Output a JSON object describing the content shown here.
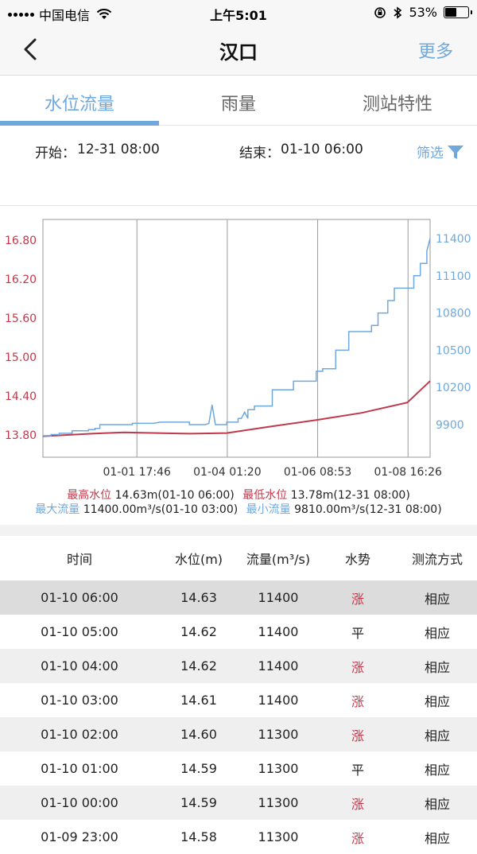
{
  "status_bar": {
    "carrier": "中国电信",
    "time": "上午5:01",
    "battery": "53%",
    "battery_level": 0.53
  },
  "nav": {
    "title": "汉口",
    "more": "更多"
  },
  "tabs": [
    {
      "label": "水位流量",
      "active": true
    },
    {
      "label": "雨量",
      "active": false
    },
    {
      "label": "测站特性",
      "active": false
    }
  ],
  "filter": {
    "start_label": "开始：",
    "start_value": "12-31 08:00",
    "end_label": "结束：",
    "end_value": "01-10 06:00",
    "filter_label": "筛选"
  },
  "colors": {
    "level": "#c0394b",
    "flow": "#6fa8dc"
  },
  "chart_data": {
    "type": "line",
    "x_ticks": [
      "01-01 17:46",
      "01-04 01:20",
      "01-06 08:53",
      "01-08 16:26"
    ],
    "x_tick_hours": [
      57.77,
      113.33,
      168.88,
      224.43
    ],
    "x_range_hours": [
      0,
      238
    ],
    "y_left_ticks": [
      "16.80",
      "16.20",
      "15.60",
      "15.00",
      "14.40",
      "13.80"
    ],
    "y_left_range": [
      13.8,
      16.8
    ],
    "y_right_ticks": [
      "11400",
      "11100",
      "10800",
      "10500",
      "10200",
      "9900"
    ],
    "y_right_range": [
      9810,
      11400
    ],
    "grid": "vertical",
    "series": [
      {
        "key": "level",
        "axis": "left",
        "x": [
          0,
          30,
          50,
          70,
          90,
          113,
          140,
          168,
          196,
          224,
          238
        ],
        "y": [
          13.78,
          13.82,
          13.84,
          13.83,
          13.82,
          13.83,
          13.93,
          14.03,
          14.14,
          14.3,
          14.63
        ]
      },
      {
        "key": "flow",
        "axis": "right",
        "x": [
          0,
          5,
          5,
          10,
          10,
          18,
          18,
          28,
          28,
          32,
          32,
          35,
          35,
          55,
          55,
          68,
          72,
          90,
          90,
          100,
          102,
          104,
          106,
          108,
          113,
          113,
          120,
          120,
          122,
          124,
          126,
          126,
          130,
          130,
          141,
          141,
          150,
          150,
          154,
          154,
          161,
          161,
          168,
          168,
          172,
          172,
          180,
          180,
          188,
          188,
          202,
          202,
          206,
          206,
          212,
          212,
          216,
          216,
          220,
          220,
          228,
          228,
          232,
          232,
          236,
          236,
          238
        ],
        "y": [
          9810,
          9810,
          9820,
          9820,
          9830,
          9830,
          9850,
          9850,
          9860,
          9860,
          9870,
          9870,
          9900,
          9900,
          9910,
          9910,
          9920,
          9920,
          9900,
          9900,
          9910,
          10060,
          9900,
          9900,
          9900,
          9920,
          9920,
          9950,
          9950,
          10000,
          9950,
          10020,
          10020,
          10050,
          10050,
          10180,
          10180,
          10180,
          10180,
          10250,
          10250,
          10250,
          10250,
          10330,
          10330,
          10350,
          10350,
          10500,
          10500,
          10650,
          10650,
          10700,
          10700,
          10800,
          10800,
          10900,
          10900,
          11000,
          11000,
          11000,
          11000,
          11100,
          11100,
          11200,
          11200,
          11300,
          11400
        ]
      }
    ]
  },
  "summary": {
    "max_level_label": "最高水位",
    "max_level_value": "14.63m(01-10 06:00)",
    "min_level_label": "最低水位",
    "min_level_value": "13.78m(12-31 08:00)",
    "max_flow_label": "最大流量",
    "max_flow_value": "11400.00m³/s(01-10 03:00)",
    "min_flow_label": "最小流量",
    "min_flow_value": "9810.00m³/s(12-31 08:00)"
  },
  "table": {
    "headers": [
      "时间",
      "水位(m)",
      "流量(m³/s)",
      "水势",
      "测流方式"
    ],
    "rows": [
      {
        "time": "01-10 06:00",
        "level": "14.63",
        "flow": "11400",
        "trend": "涨",
        "method": "相应"
      },
      {
        "time": "01-10 05:00",
        "level": "14.62",
        "flow": "11400",
        "trend": "平",
        "method": "相应"
      },
      {
        "time": "01-10 04:00",
        "level": "14.62",
        "flow": "11400",
        "trend": "涨",
        "method": "相应"
      },
      {
        "time": "01-10 03:00",
        "level": "14.61",
        "flow": "11400",
        "trend": "涨",
        "method": "相应"
      },
      {
        "time": "01-10 02:00",
        "level": "14.60",
        "flow": "11300",
        "trend": "涨",
        "method": "相应"
      },
      {
        "time": "01-10 01:00",
        "level": "14.59",
        "flow": "11300",
        "trend": "平",
        "method": "相应"
      },
      {
        "time": "01-10 00:00",
        "level": "14.59",
        "flow": "11300",
        "trend": "涨",
        "method": "相应"
      },
      {
        "time": "01-09 23:00",
        "level": "14.58",
        "flow": "11300",
        "trend": "涨",
        "method": "相应"
      }
    ]
  }
}
